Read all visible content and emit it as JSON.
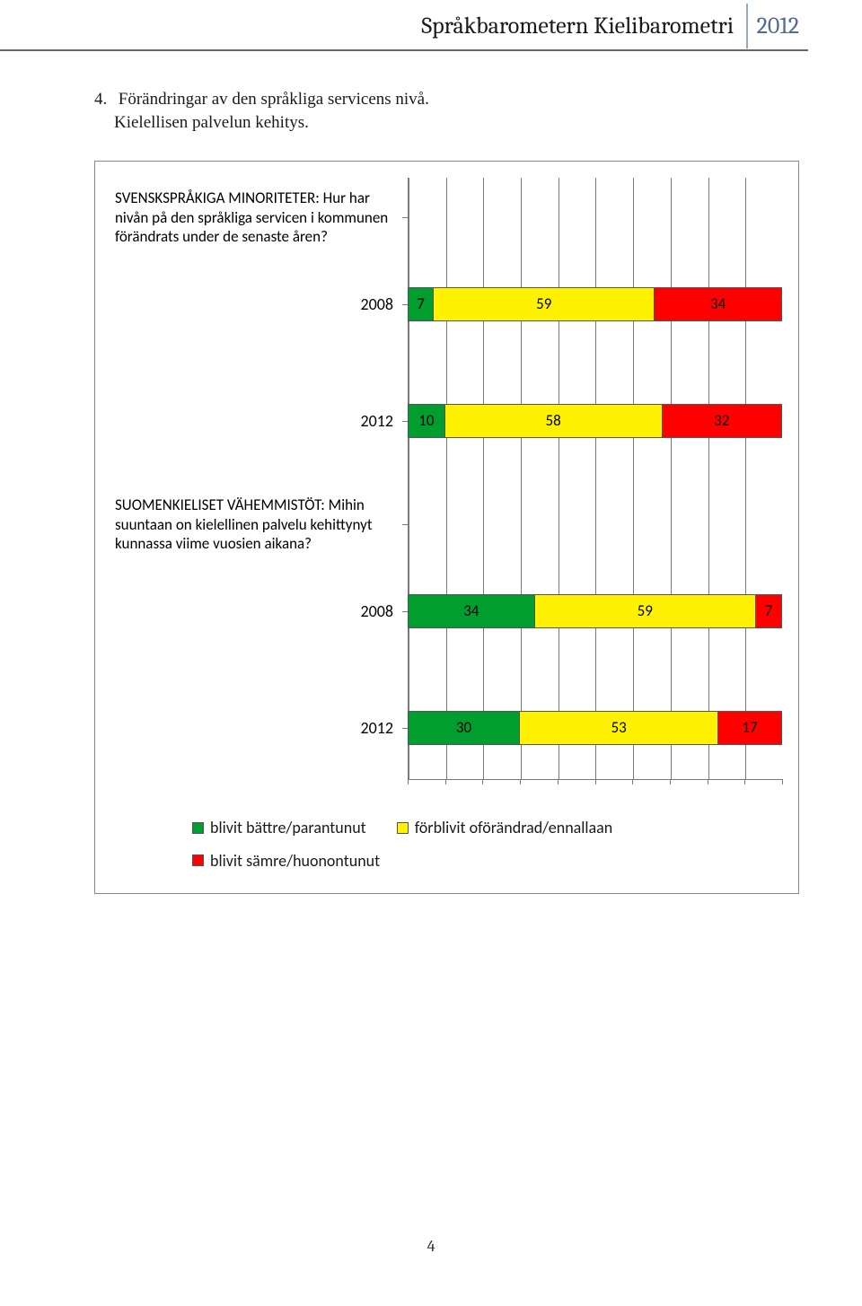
{
  "header": {
    "title": "Språkbarometern Kielibarometri",
    "year": "2012"
  },
  "section": {
    "number": "4.",
    "line1": "Förändringar av den språkliga servicens nivå.",
    "line2": "Kielellisen palvelun  kehitys."
  },
  "chart": {
    "type": "stacked-bar-horizontal",
    "grid": {
      "min": 0,
      "max": 100,
      "step": 10,
      "color": "#7a7a7a"
    },
    "colors": {
      "better": "#009e2f",
      "unchanged": "#fff200",
      "worse": "#ff0000"
    },
    "groups": [
      {
        "label": "SVENSKSPRÅKIGA MINORITETER: Hur har nivån på den språkliga servicen i kommunen förändrats under de senaste åren?",
        "bars": [
          {
            "year": "2008",
            "values": {
              "better": 7,
              "unchanged": 59,
              "worse": 34
            }
          },
          {
            "year": "2012",
            "values": {
              "better": 10,
              "unchanged": 58,
              "worse": 32
            }
          }
        ]
      },
      {
        "label": "SUOMENKIELISET VÄHEMMISTÖT: Mihin suuntaan on kielellinen palvelu kehittynyt kunnassa viime vuosien aikana?",
        "bars": [
          {
            "year": "2008",
            "values": {
              "better": 34,
              "unchanged": 59,
              "worse": 7
            }
          },
          {
            "year": "2012",
            "values": {
              "better": 30,
              "unchanged": 53,
              "worse": 17
            }
          }
        ]
      }
    ],
    "legend": [
      {
        "key": "better",
        "label": "blivit bättre/parantunut"
      },
      {
        "key": "unchanged",
        "label": "förblivit oförändrad/ennallaan"
      },
      {
        "key": "worse",
        "label": "blivit sämre/huonontunut"
      }
    ]
  },
  "page_number": "4"
}
